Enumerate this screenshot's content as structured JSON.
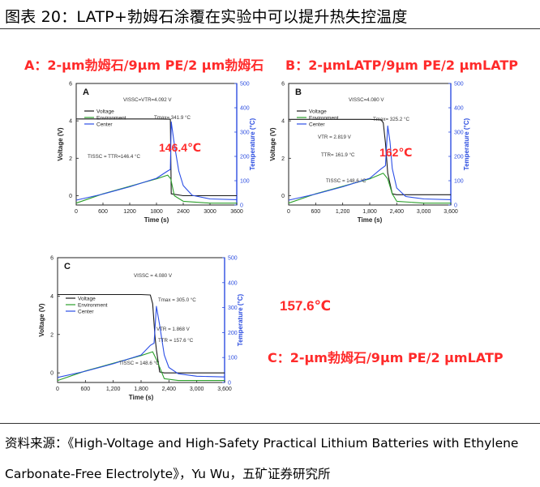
{
  "figure_title": "图表 20：LATP+勃姆石涂覆在实验中可以提升热失控温度",
  "labels": {
    "a": "A：2-μm勃姆石/9μm PE/2 μm勃姆石",
    "b": "B：2-μmLATP/9μm PE/2 μmLATP",
    "c": "C：2-μm勃姆石/9μm PE/2 μmLATP",
    "c_temp": "157.6℃"
  },
  "source_line1": "资料来源：《High-Voltage and High-Safety Practical Lithium Batteries with Ethylene",
  "source_line2": "Carbonate-Free Electrolyte》，Yu Wu，五矿证券研究所",
  "colors": {
    "voltage": "#1a1a1a",
    "environment": "#2ca02c",
    "center": "#2b4ee6",
    "red": "#ff2a2a",
    "axis_blue": "#2d4ee0"
  },
  "chart_data": [
    {
      "type": "line",
      "panel": "A",
      "xlabel": "Time (s)",
      "ylabel_left": "Voltage (V)",
      "ylabel_right": "Temperature (°C)",
      "xlim": [
        0,
        3600
      ],
      "ylim_left": [
        -0.5,
        6
      ],
      "ylim_right": [
        0,
        500
      ],
      "x_ticks": [
        "0",
        "600",
        "1200",
        "1800",
        "2400",
        "3000",
        "3600"
      ],
      "y_ticks_left": [
        "0",
        "2",
        "4",
        "6"
      ],
      "y_ticks_right": [
        "0",
        "100",
        "200",
        "300",
        "400",
        "500"
      ],
      "legend": [
        "Voltage",
        "Environment",
        "Center"
      ],
      "annotations": [
        "VISSC=VTR=4.092 V",
        "Tmax= 341.9 °C",
        "TISSC = TTR=146.4 °C"
      ],
      "highlight": "146.4℃",
      "series": [
        {
          "name": "Voltage",
          "axis": "left",
          "x": [
            0,
            1800,
            2080,
            2110,
            2130,
            2400,
            3600
          ],
          "y": [
            4.1,
            4.1,
            4.09,
            4.09,
            0.1,
            0.0,
            0.0
          ]
        },
        {
          "name": "Environment",
          "axis": "left",
          "x": [
            0,
            600,
            1200,
            1800,
            2050,
            2120,
            2200,
            2400,
            3000,
            3600
          ],
          "y": [
            -0.4,
            0.1,
            0.5,
            0.9,
            1.1,
            0.9,
            0.0,
            -0.3,
            -0.4,
            -0.4
          ]
        },
        {
          "name": "Center",
          "axis": "right",
          "x": [
            0,
            600,
            1200,
            1800,
            2050,
            2110,
            2130,
            2200,
            2300,
            2400,
            2600,
            3000,
            3600
          ],
          "y": [
            20,
            45,
            75,
            110,
            140,
            146.4,
            341.9,
            250,
            140,
            80,
            40,
            25,
            22
          ]
        }
      ]
    },
    {
      "type": "line",
      "panel": "B",
      "xlabel": "Time (s)",
      "ylabel_left": "Voltage (V)",
      "ylabel_right": "Temperature (°C)",
      "xlim": [
        0,
        3600
      ],
      "ylim_left": [
        -0.5,
        6
      ],
      "ylim_right": [
        0,
        500
      ],
      "x_ticks": [
        "0",
        "600",
        "1,200",
        "1,800",
        "2,400",
        "3,000",
        "3,600"
      ],
      "y_ticks_left": [
        "0",
        "2",
        "4",
        "6"
      ],
      "y_ticks_right": [
        "0",
        "100",
        "200",
        "300",
        "400",
        "500"
      ],
      "legend": [
        "Voltage",
        "Environment",
        "Center"
      ],
      "annotations": [
        "VISSC=4.080 V",
        "Tmax= 325.2 °C",
        "VTR = 2.819 V",
        "TTR= 161.9 °C",
        "TISSC = 148.6 °C"
      ],
      "highlight": "162℃",
      "series": [
        {
          "name": "Voltage",
          "axis": "left",
          "x": [
            0,
            1800,
            2050,
            2100,
            2150,
            2200,
            2300,
            2400,
            3600
          ],
          "y": [
            4.08,
            4.08,
            4.06,
            3.9,
            2.82,
            1.2,
            0.1,
            0.05,
            0.05
          ]
        },
        {
          "name": "Environment",
          "axis": "left",
          "x": [
            0,
            600,
            1200,
            1800,
            2100,
            2200,
            2300,
            2400,
            3000,
            3600
          ],
          "y": [
            -0.4,
            0.1,
            0.5,
            0.9,
            1.2,
            0.9,
            0.1,
            -0.3,
            -0.4,
            -0.4
          ]
        },
        {
          "name": "Center",
          "axis": "right",
          "x": [
            0,
            600,
            1200,
            1800,
            2050,
            2150,
            2200,
            2250,
            2300,
            2400,
            2600,
            3000,
            3600
          ],
          "y": [
            20,
            45,
            75,
            110,
            148.6,
            161.9,
            325.2,
            260,
            150,
            70,
            35,
            25,
            22
          ]
        }
      ]
    },
    {
      "type": "line",
      "panel": "C",
      "xlabel": "Time (s)",
      "ylabel_left": "Voltage (V)",
      "ylabel_right": "Temperature (°C)",
      "xlim": [
        0,
        3600
      ],
      "ylim_left": [
        -0.5,
        6
      ],
      "ylim_right": [
        0,
        500
      ],
      "x_ticks": [
        "0",
        "600",
        "1,200",
        "1,800",
        "2,400",
        "3,000",
        "3,600"
      ],
      "y_ticks_left": [
        "0",
        "2",
        "4",
        "6"
      ],
      "y_ticks_right": [
        "0",
        "100",
        "200",
        "300",
        "400",
        "500"
      ],
      "legend": [
        "Voltage",
        "Environment",
        "Center"
      ],
      "annotations": [
        "VISSC = 4.080 V",
        "Tmax = 305.0 °C",
        "VTR = 1.868 V",
        "TTR = 157.6 °C",
        "TISSC = 148.6 °C"
      ],
      "series": [
        {
          "name": "Voltage",
          "axis": "left",
          "x": [
            0,
            1800,
            2000,
            2050,
            2100,
            2130,
            2200,
            2300,
            3600
          ],
          "y": [
            4.08,
            4.08,
            4.06,
            3.6,
            1.87,
            1.2,
            0.05,
            0.0,
            0.0
          ]
        },
        {
          "name": "Environment",
          "axis": "left",
          "x": [
            0,
            600,
            1200,
            1800,
            2050,
            2150,
            2300,
            2600,
            3600
          ],
          "y": [
            -0.4,
            0.1,
            0.5,
            0.9,
            1.1,
            0.6,
            -0.3,
            -0.4,
            -0.4
          ]
        },
        {
          "name": "Center",
          "axis": "right",
          "x": [
            0,
            600,
            1200,
            1800,
            2000,
            2080,
            2130,
            2200,
            2300,
            2400,
            2600,
            3000,
            3600
          ],
          "y": [
            20,
            45,
            75,
            110,
            148.6,
            157.6,
            305.0,
            230,
            110,
            60,
            35,
            25,
            22
          ]
        }
      ]
    }
  ]
}
